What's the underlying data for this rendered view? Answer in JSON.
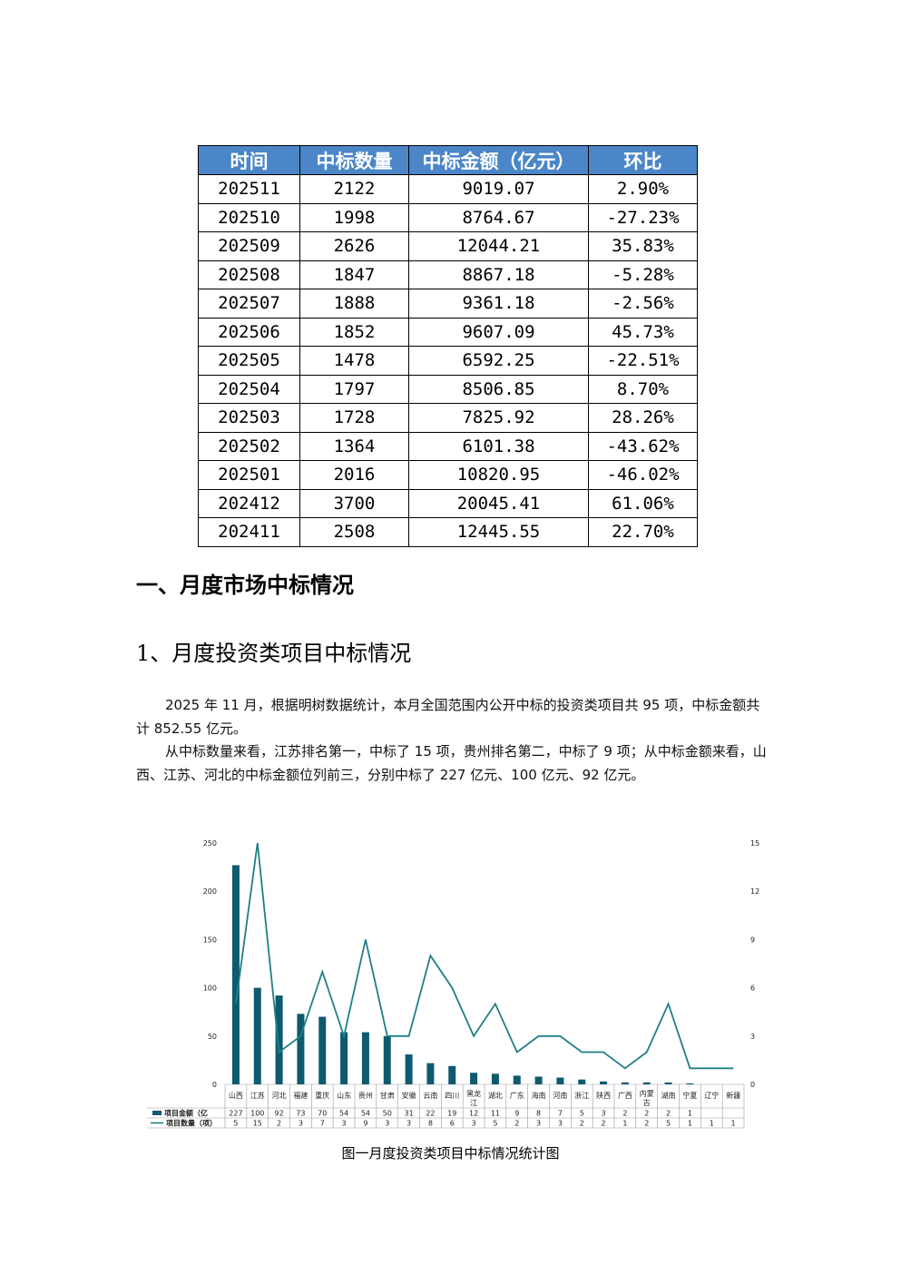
{
  "summary_table": {
    "headers": [
      "时间",
      "中标数量",
      "中标金额（亿元）",
      "环比"
    ],
    "rows": [
      [
        "202511",
        "2122",
        "9019.07",
        "2.90%"
      ],
      [
        "202510",
        "1998",
        "8764.67",
        "-27.23%"
      ],
      [
        "202509",
        "2626",
        "12044.21",
        "35.83%"
      ],
      [
        "202508",
        "1847",
        "8867.18",
        "-5.28%"
      ],
      [
        "202507",
        "1888",
        "9361.18",
        "-2.56%"
      ],
      [
        "202506",
        "1852",
        "9607.09",
        "45.73%"
      ],
      [
        "202505",
        "1478",
        "6592.25",
        "-22.51%"
      ],
      [
        "202504",
        "1797",
        "8506.85",
        "8.70%"
      ],
      [
        "202503",
        "1728",
        "7825.92",
        "28.26%"
      ],
      [
        "202502",
        "1364",
        "6101.38",
        "-43.62%"
      ],
      [
        "202501",
        "2016",
        "10820.95",
        "-46.02%"
      ],
      [
        "202412",
        "3700",
        "20045.41",
        "61.06%"
      ],
      [
        "202411",
        "2508",
        "12445.55",
        "22.70%"
      ]
    ]
  },
  "section_heading": "一、月度市场中标情况",
  "subsection_heading": "1、月度投资类项目中标情况",
  "paragraphs": [
    "2025 年 11 月，根据明树数据统计，本月全国范围内公开中标的投资类项目共 95 项，中标金额共计 852.55 亿元。",
    "从中标数量来看，江苏排名第一，中标了 15 项，贵州排名第二，中标了 9 项；从中标金额来看，山西、江苏、河北的中标金额位列前三，分别中标了 227 亿元、100 亿元、92 亿元。"
  ],
  "chart_data": {
    "type": "bar",
    "categories": [
      "山西",
      "江苏",
      "河北",
      "福建",
      "重庆",
      "山东",
      "贵州",
      "甘肃",
      "安徽",
      "云南",
      "四川",
      "黑龙江",
      "湖北",
      "广东",
      "海南",
      "河南",
      "浙江",
      "陕西",
      "广西",
      "内蒙古",
      "湖南",
      "宁夏",
      "辽宁",
      "新疆"
    ],
    "series": [
      {
        "name": "项目金额（亿",
        "type": "bar",
        "axis": "left",
        "values": [
          227,
          100,
          92,
          73,
          70,
          54,
          54,
          50,
          31,
          22,
          19,
          12,
          11,
          9,
          8,
          7,
          5,
          3,
          2,
          2,
          2,
          1,
          null,
          null
        ]
      },
      {
        "name": "项目数量（项）",
        "type": "line",
        "axis": "right",
        "values": [
          5,
          15,
          2,
          3,
          7,
          3,
          9,
          3,
          3,
          8,
          6,
          3,
          5,
          2,
          3,
          3,
          2,
          2,
          1,
          2,
          5,
          1,
          1,
          1
        ]
      }
    ],
    "left_ticks": [
      "250",
      "200",
      "150",
      "100",
      "50",
      "0"
    ],
    "right_ticks": [
      "15",
      "12",
      "9",
      "6",
      "3",
      "0"
    ],
    "ylim_left": [
      0,
      250
    ],
    "ylim_right": [
      0,
      15
    ],
    "grid": false,
    "legend": "data-table-bottom",
    "colors": {
      "bar": "#0e5a6e",
      "line": "#1f7f86"
    }
  },
  "caption": "图一月度投资类项目中标情况统计图"
}
